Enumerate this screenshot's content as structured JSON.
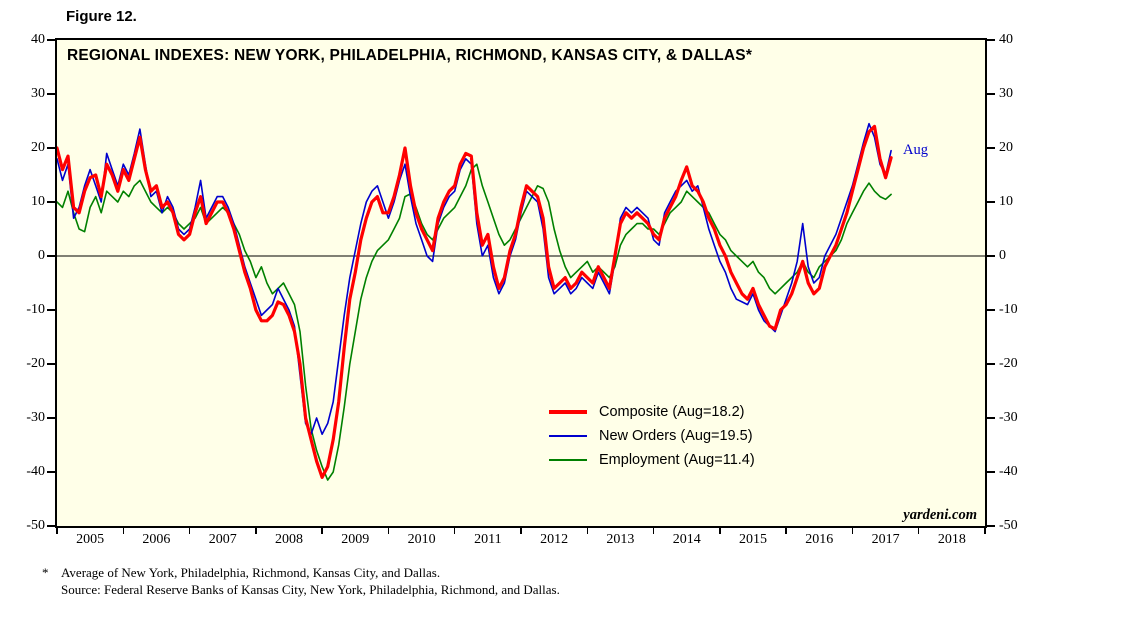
{
  "figure_label": "Figure 12.",
  "chart": {
    "annotation": "Aug",
    "watermark": "yardeni.com",
    "background": "#FFFFE8",
    "colors": {
      "composite": "#FF0000",
      "new_orders": "#0000CD",
      "employment": "#008000",
      "plot_background": "#FFFFE8",
      "border": "#000000"
    }
  },
  "chart_data": {
    "type": "line",
    "title": "REGIONAL INDEXES: NEW YORK, PHILADELPHIA, RICHMOND, KANSAS CITY, & DALLAS*",
    "x_start": 2005,
    "x_interval_months": 1,
    "x_axis": {
      "min": 2005,
      "max": 2019,
      "years": [
        2005,
        2006,
        2007,
        2008,
        2009,
        2010,
        2011,
        2012,
        2013,
        2014,
        2015,
        2016,
        2017,
        2018
      ]
    },
    "ylim": [
      -50,
      40
    ],
    "yticks": [
      40,
      30,
      20,
      10,
      0,
      -10,
      -20,
      -30,
      -40,
      -50
    ],
    "grid": "zero-line-only",
    "legend_position": "inside-lower-center",
    "series": [
      {
        "name": "Composite",
        "legend": "Composite (Aug=18.2)",
        "latest_label": "Aug",
        "latest_value": 18.2,
        "color": "#FF0000",
        "stroke_width": 3.2,
        "values": [
          20,
          16,
          18.5,
          9,
          8,
          12,
          14.5,
          15,
          11,
          17,
          15,
          12,
          16,
          14,
          18,
          22,
          16,
          12,
          13,
          9,
          10,
          8,
          4,
          3,
          4,
          8,
          11,
          6,
          8,
          10,
          10,
          8,
          5,
          1,
          -3,
          -6,
          -10,
          -12,
          -12,
          -11,
          -8.5,
          -9,
          -11,
          -14,
          -20,
          -30,
          -34,
          -38,
          -41,
          -39,
          -34,
          -27,
          -17,
          -8,
          -3,
          3,
          7,
          10,
          11,
          8,
          8,
          11,
          15,
          20,
          13,
          8,
          5,
          3,
          1,
          7,
          10,
          12,
          13,
          17,
          19,
          18.5,
          8,
          2,
          4,
          -2,
          -6,
          -4,
          1,
          4,
          9,
          13,
          12,
          11,
          7,
          -2,
          -6,
          -5,
          -4,
          -6,
          -5,
          -3,
          -4,
          -5,
          -2,
          -4,
          -6,
          0,
          6,
          8,
          7,
          8,
          7,
          6,
          4,
          3,
          7,
          9,
          11,
          14,
          16.5,
          13,
          12,
          10,
          7,
          5,
          2,
          0,
          -3,
          -5,
          -7,
          -8,
          -6,
          -9,
          -11,
          -13,
          -13.5,
          -10,
          -9,
          -7,
          -4,
          -1,
          -5,
          -7,
          -6,
          -2,
          0,
          2,
          5,
          8,
          12,
          16,
          20,
          23,
          24,
          18,
          14.5,
          18.2
        ]
      },
      {
        "name": "New Orders",
        "legend": "New Orders (Aug=19.5)",
        "latest_label": "Aug",
        "latest_value": 19.5,
        "color": "#0000CD",
        "stroke_width": 1.6,
        "values": [
          18,
          14,
          17,
          7,
          9,
          13,
          16,
          13,
          10,
          19,
          16,
          13,
          17,
          15,
          19,
          23.5,
          17,
          11,
          12,
          8,
          11,
          9,
          5,
          4,
          5,
          9,
          14,
          7,
          9,
          11,
          11,
          9,
          6,
          2,
          -2,
          -5,
          -8,
          -11,
          -10,
          -9,
          -6,
          -8,
          -10,
          -13,
          -22,
          -31,
          -33,
          -30,
          -33,
          -31,
          -27,
          -19,
          -11,
          -4,
          1,
          6,
          10,
          12,
          13,
          10,
          7,
          10,
          14,
          17,
          11,
          6,
          3,
          0,
          -1,
          6,
          9,
          11,
          12,
          16,
          18,
          17,
          6,
          0,
          2,
          -4,
          -7,
          -5,
          0,
          3,
          8,
          12,
          11,
          10,
          5,
          -4,
          -7,
          -6,
          -5,
          -7,
          -6,
          -4,
          -5,
          -6,
          -3,
          -5,
          -7,
          -1,
          7,
          9,
          8,
          9,
          8,
          7,
          3,
          2,
          8,
          10,
          12,
          13,
          14,
          12,
          13,
          9,
          5,
          2,
          -1,
          -3,
          -6,
          -8,
          -8.5,
          -9,
          -7,
          -10,
          -12,
          -13,
          -14,
          -11,
          -8,
          -5,
          -1,
          6,
          -2,
          -5,
          -4,
          0,
          2,
          4,
          7,
          10,
          13,
          17,
          21,
          24.5,
          22,
          17,
          15,
          19.5
        ]
      },
      {
        "name": "Employment",
        "legend": "Employment (Aug=11.4)",
        "latest_label": "Aug",
        "latest_value": 11.4,
        "color": "#008000",
        "stroke_width": 1.6,
        "values": [
          10,
          9,
          12,
          8,
          5,
          4.5,
          9,
          11,
          8,
          12,
          11,
          10,
          12,
          11,
          13,
          14,
          12,
          10,
          9,
          8,
          9,
          8,
          6,
          5,
          6,
          7,
          9,
          6,
          7,
          8,
          9,
          8,
          6,
          4,
          1,
          -1,
          -4,
          -2,
          -5,
          -7,
          -6,
          -5,
          -7,
          -9,
          -14,
          -24,
          -32,
          -36,
          -39,
          -41.5,
          -40,
          -35,
          -28,
          -20,
          -14,
          -8,
          -4,
          -1,
          1,
          2,
          3,
          5,
          7,
          11,
          11.5,
          9,
          6,
          4,
          3,
          5,
          7,
          8,
          9,
          11,
          13,
          16,
          17,
          13,
          10,
          7,
          4,
          2,
          3,
          5,
          7,
          9,
          11,
          13,
          12.5,
          10,
          5,
          1,
          -2,
          -4,
          -3,
          -2,
          -1,
          -3,
          -2,
          -3,
          -4,
          -2,
          2,
          4,
          5,
          6,
          6,
          5,
          5,
          4,
          6,
          8,
          9,
          10,
          12,
          11,
          10,
          9,
          8,
          6,
          4,
          3,
          1,
          0,
          -1,
          -2,
          -1,
          -3,
          -4,
          -6,
          -7,
          -6,
          -5,
          -4,
          -3,
          -1,
          -3,
          -4,
          -2,
          -1,
          0,
          1,
          3,
          6,
          8,
          10,
          12,
          13.5,
          12,
          11,
          10.5,
          11.4
        ]
      }
    ]
  },
  "footnotes": {
    "marker": "*",
    "line1": "Average of New York, Philadelphia, Richmond, Kansas City, and Dallas.",
    "line2": "Source: Federal Reserve Banks of Kansas City, New York, Philadelphia, Richmond, and Dallas."
  }
}
